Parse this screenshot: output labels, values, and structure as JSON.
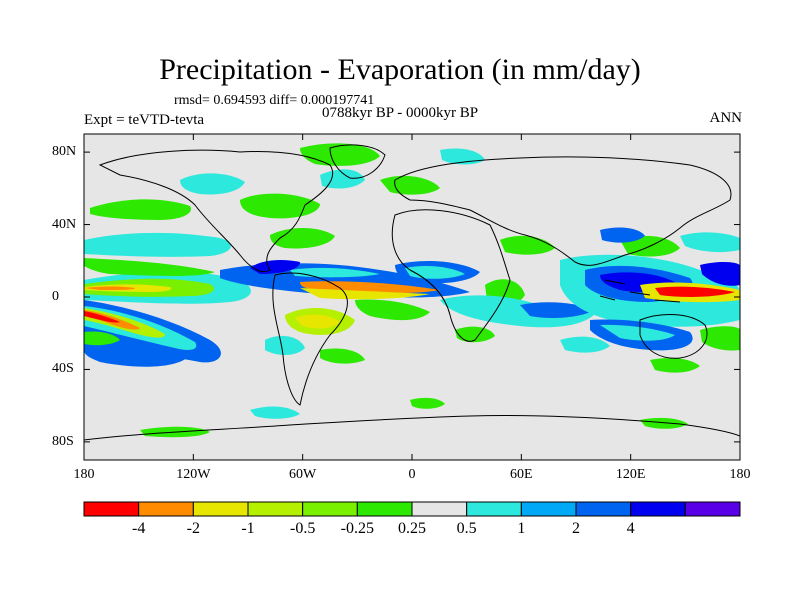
{
  "title": "Precipitation - Evaporation (in mm/day)",
  "stats": "rmsd= 0.694593 diff= 0.000197741",
  "periods": "0788kyr BP - 0000kyr BP",
  "experiment": "Expt = teVTD-tevta",
  "season": "ANN",
  "lat_ticks": [
    {
      "label": "80N",
      "value": 80
    },
    {
      "label": "40N",
      "value": 40
    },
    {
      "label": "0",
      "value": 0
    },
    {
      "label": "40S",
      "value": -40
    },
    {
      "label": "80S",
      "value": -80
    }
  ],
  "lon_ticks": [
    {
      "label": "180",
      "value": -180
    },
    {
      "label": "120W",
      "value": -120
    },
    {
      "label": "60W",
      "value": -60
    },
    {
      "label": "0",
      "value": 0
    },
    {
      "label": "60E",
      "value": 60
    },
    {
      "label": "120E",
      "value": 120
    },
    {
      "label": "180",
      "value": 180
    }
  ],
  "colorbar": {
    "colors": [
      "#ff0000",
      "#ff8c00",
      "#e6e600",
      "#b4f000",
      "#78f000",
      "#2de800",
      "#e6e6e6",
      "#2de8dc",
      "#00a8f5",
      "#0064f0",
      "#0000f0",
      "#5a00e6"
    ],
    "labels": [
      "-4",
      "-2",
      "-1",
      "-0.5",
      "-0.25",
      "0.25",
      "0.5",
      "1",
      "2",
      "4"
    ]
  }
}
